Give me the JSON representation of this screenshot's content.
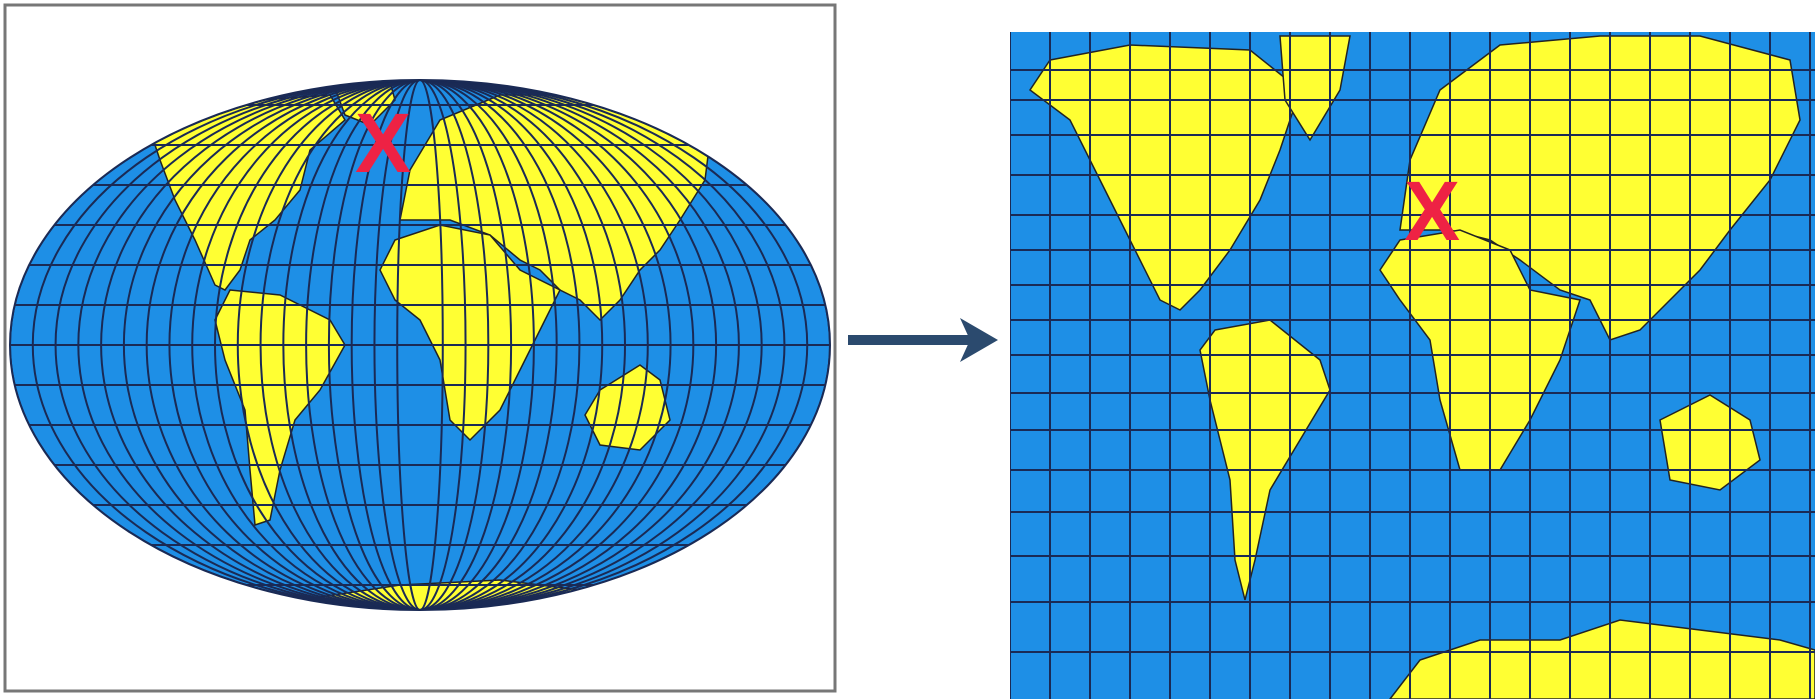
{
  "left_map": {
    "marker": "X"
  },
  "right_map": {
    "marker": "X"
  }
}
